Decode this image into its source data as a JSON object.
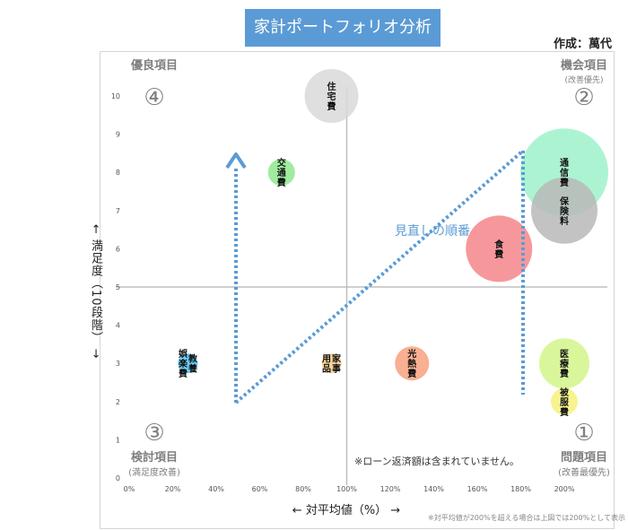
{
  "title": "家計ポートフォリオ分析",
  "author": "作成：萬代",
  "colors": {
    "title_bg": "#5b9bd5",
    "arrow": "#5b9bd5",
    "quadrant_text": "#7f7f7f",
    "axis_line": "#bfbfbf"
  },
  "chart_data": {
    "type": "bubble",
    "title": "家計ポートフォリオ分析",
    "xlabel": "← 対平均値（%） →",
    "ylabel": "← 満足度（10段階） →",
    "xlim": [
      0,
      200
    ],
    "ylim": [
      0,
      10
    ],
    "xticks": [
      "0%",
      "20%",
      "40%",
      "60%",
      "80%",
      "100%",
      "120%",
      "140%",
      "160%",
      "180%",
      "200%"
    ],
    "yticks": [
      "0",
      "1",
      "2",
      "3",
      "4",
      "5",
      "6",
      "7",
      "8",
      "9",
      "10"
    ],
    "divider": {
      "x": 100,
      "y": 5
    },
    "bubbles": [
      {
        "label": "住宅費",
        "x": 93,
        "y": 10,
        "r": 30,
        "color": "#d9d9d9"
      },
      {
        "label": "交通費",
        "x": 70,
        "y": 8,
        "r": 15,
        "color": "#8fe88f"
      },
      {
        "label": "通信費",
        "x": 200,
        "y": 8,
        "r": 49,
        "color": "#9ef2c9"
      },
      {
        "label": "保険料",
        "x": 200,
        "y": 7,
        "r": 37,
        "color": "#b8b8b8"
      },
      {
        "label": "食費",
        "x": 170,
        "y": 6,
        "r": 37,
        "color": "#f4868a"
      },
      {
        "label": "教養娯楽費",
        "x": 27,
        "y": 3,
        "r": 11,
        "color": "#4fc3f7"
      },
      {
        "label": "家事用品",
        "x": 93,
        "y": 3,
        "r": 11,
        "color": "#f8cb8a"
      },
      {
        "label": "光熱費",
        "x": 130,
        "y": 3,
        "r": 19,
        "color": "#f7a17f"
      },
      {
        "label": "医療費",
        "x": 200,
        "y": 3,
        "r": 28,
        "color": "#d4f58a"
      },
      {
        "label": "被服費",
        "x": 200,
        "y": 2,
        "r": 15,
        "color": "#f6f27c"
      }
    ],
    "annotations": {
      "path_label": "見直しの順番",
      "note": "※ローン返済額は含まれていません。"
    },
    "quadrants": [
      {
        "num": "④",
        "label": "優良項目",
        "sub": "",
        "corner": "top-left"
      },
      {
        "num": "②",
        "label": "機会項目",
        "sub": "(改善優先)",
        "corner": "top-right"
      },
      {
        "num": "③",
        "label": "検討項目",
        "sub": "(満足度改善)",
        "corner": "bottom-left"
      },
      {
        "num": "①",
        "label": "問題項目",
        "sub": "(改善最優先)",
        "corner": "bottom-right"
      }
    ]
  },
  "footnote": "※対平均値が200%を超える場合は上図では200%として表示"
}
